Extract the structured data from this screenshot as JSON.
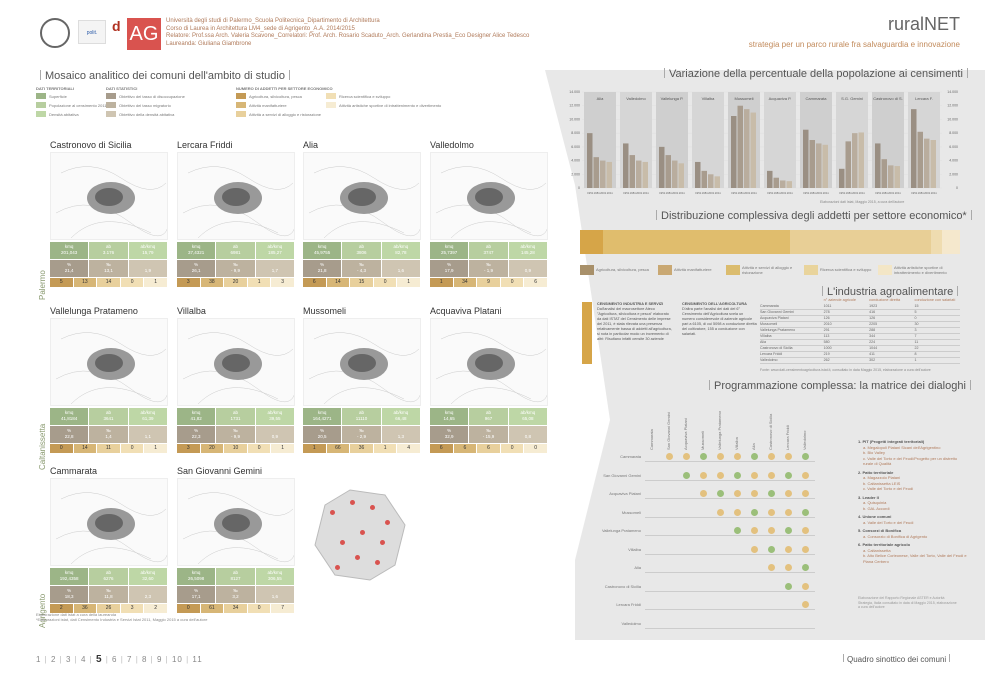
{
  "header": {
    "uni_lines": [
      "Università degli studi di Palermo_Scuola Politecnica_Dipartimento di Architettura",
      "Corso di Laurea in Architettura LM4_sede di Agrigento_A.A. 2014/2015",
      "Relatore: Prof.ssa Arch. Valeria Scavone_Correlatori: Prof. Arch. Rosario Scaduto_Arch. Gerlandina Prestia_Eco Designer Alice Tedesco",
      "Laureanda: Giuliana Giambrone"
    ],
    "title": "ruralNET",
    "subtitle": "strategia per un parco rurale fra salvaguardia e innovazione",
    "logo_ag": "AG"
  },
  "left": {
    "title": "Mosaico analitico dei comuni dell'ambito di studio",
    "legend_heads": [
      "DATI TERRITORIALI",
      "DATI STATISTICI",
      "NUMERO DI ADDETTI PER SETTORE ECONOMICO"
    ],
    "legend_items": [
      "Superficie",
      "Popolazione al censimento 2011",
      "Densità abitativa",
      "Obiettivo del tasso di disoccupazione",
      "Obiettivo del tasso migratorio",
      "Obiettivo della densità abitativa",
      "Agricoltura, silvicoltura, pesca",
      "Attività manifatturiere",
      "Attività a servizi di alloggio e ristorazione",
      "Ricerca scientifica e sviluppo",
      "Attività artistiche sportive di intrattenimento e divertimento"
    ],
    "provinces": [
      "Palermo",
      "Caltanissetta",
      "Agrigento"
    ],
    "towns": [
      {
        "name": "Castronovo di Sicilia",
        "kmq": "201,043",
        "ab": "3.176",
        "den": "15,79",
        "v1": "21,4",
        "v2": "13,1",
        "v3": "1,9",
        "c": [
          "5",
          "13",
          "14",
          "0",
          "1"
        ]
      },
      {
        "name": "Lercara Friddi",
        "kmq": "37,4321",
        "ab": "6981",
        "den": "185,27",
        "v1": "26,1",
        "v2": "- 9,9",
        "v3": "1,7",
        "c": [
          "3",
          "38",
          "20",
          "1",
          "3"
        ]
      },
      {
        "name": "Alia",
        "kmq": "45,9755",
        "ab": "3806",
        "den": "82,78",
        "v1": "21,8",
        "v2": "- 4,3",
        "v3": "1,6",
        "c": [
          "6",
          "14",
          "15",
          "0",
          "1"
        ]
      },
      {
        "name": "Valledolmo",
        "kmq": "25,7397",
        "ab": "3747",
        "den": "145,28",
        "v1": "17,9",
        "v2": "- 1,9",
        "v3": "0,9",
        "c": [
          "1",
          "34",
          "9",
          "0",
          "6"
        ]
      },
      {
        "name": "Vallelunga Pratameno",
        "kmq": "41,8184",
        "ab": "3641",
        "den": "61,39",
        "v1": "22,8",
        "v2": "1,4",
        "v3": "1,1",
        "c": [
          "0",
          "14",
          "11",
          "0",
          "1"
        ]
      },
      {
        "name": "Villalba",
        "kmq": "41,82",
        "ab": "1731",
        "den": "39,55",
        "v1": "22,3",
        "v2": "- 9,9",
        "v3": "0,9",
        "c": [
          "3",
          "20",
          "10",
          "0",
          "1"
        ]
      },
      {
        "name": "Mussomeli",
        "kmq": "164,4271",
        "ab": "11110",
        "den": "66,48",
        "v1": "20,5",
        "v2": "- 2,9",
        "v3": "1,3",
        "c": [
          "1",
          "66",
          "36",
          "1",
          "4"
        ]
      },
      {
        "name": "Acquaviva Platani",
        "kmq": "14,65",
        "ab": "967",
        "den": "65,08",
        "v1": "32,9",
        "v2": "- 15,9",
        "v3": "0,8",
        "c": [
          "6",
          "6",
          "6",
          "0",
          "0"
        ]
      },
      {
        "name": "Cammarata",
        "kmq": "192,4358",
        "ab": "6276",
        "den": "32,60",
        "v1": "18,3",
        "v2": "11,8",
        "v3": "2,3",
        "c": [
          "2",
          "36",
          "26",
          "3",
          "2"
        ]
      },
      {
        "name": "San Giovanni Gemini",
        "kmq": "26,5098",
        "ab": "8127",
        "den": "306,55",
        "v1": "17,1",
        "v2": "3,2",
        "v3": "1,6",
        "c": [
          "0",
          "61",
          "34",
          "0",
          "7"
        ]
      }
    ],
    "stat_heads": [
      "kmq",
      "ab",
      "ab/kmq",
      "%",
      "‰",
      ""
    ],
    "footnote": [
      "Elaborazione dati istat a cura della laureanda",
      "*Elaborazioni istat, dati Censimento Industria e Servizi Istat 2011, Maggio 2015 a cura dell'autore"
    ]
  },
  "pop": {
    "title": "Variazione della percentuale della popolazione ai censimenti",
    "towns": [
      "Alia",
      "Valledolmo",
      "Vallelunga P.",
      "Villalba",
      "Mussomeli",
      "Acquaviva P.",
      "Cammarata",
      "S.G. Gemini",
      "Castronovo di S.",
      "Lercara F."
    ],
    "years": [
      "1951",
      "1981",
      "2001",
      "2011"
    ],
    "ticks": [
      "14.000",
      "12.000",
      "10.000",
      "8.000",
      "6.000",
      "4.000",
      "2.000",
      "0"
    ],
    "source": "Elaborazioni dati Istat, Maggio 2015, a cura dell'autore"
  },
  "dist": {
    "title": "Distribuzione complessiva degli addetti per settore economico*",
    "legend": [
      "Agricoltura, silvicoltura, pesca",
      "Attività manifatturiere",
      "Attività e servizi di alloggio e ristorazione",
      "Ricerca scientifica e sviluppo",
      "Attività artistiche sportive di intrattenimento e divertimento"
    ]
  },
  "agro": {
    "title": "L'industria agroalimentare",
    "col1_head": "CENSIMENTO INDUSTRIA E SERVIZI",
    "col1_text": "Dall'analisi del macrosettore Ateco \"Agricoltura, silvicoltura e pesca\" elaborato da dati ISTAT del Censimento delle imprese del 2011, è stata rilevata una presenza relativamente bassa di addetti all'agricoltura, si nota in particolar modo un incremento di altri: Risultano infatti censite 30 aziende",
    "col2_head": "CENSIMENTO DELL'AGRICOLTURA",
    "col2_text": "D'altra parte l'analisi dei dati del 6° Censimento dell'Agricoltura svela un numero considerevole di aziende agricole pari a 6105, di cui 5098 a conduzione diretta del coltivatore, 155 a conduzione con salariati.",
    "table_head": [
      "n° aziende agricole",
      "conduzione diretta",
      "conduzione con salariati"
    ],
    "table": [
      [
        "Cammarata",
        "1011",
        "1923",
        "15"
      ],
      [
        "San Giovanni Gemini",
        "278",
        "416",
        "5"
      ],
      [
        "Acquaviva Platani",
        "126",
        "126",
        "0"
      ],
      [
        "Mussomeli",
        "2010",
        "2205",
        "30"
      ],
      [
        "Vallelunga Pratameno",
        "291",
        "288",
        "3"
      ],
      [
        "Villalba",
        "113",
        "344",
        "7"
      ],
      [
        "Alia",
        "580",
        "224",
        "11"
      ],
      [
        "Castronovo di Sicilia",
        "1000",
        "1044",
        "22"
      ],
      [
        "Lercara Friddi",
        "219",
        "411",
        "8"
      ],
      [
        "Valledolmo",
        "262",
        "302",
        "1"
      ]
    ],
    "source": "Fonte: www.dati-censimentoagricoltura.istat.it, consultato in data Maggio 2015, elaborazione a cura dell'autore"
  },
  "matrix": {
    "title": "Programmazione complessa: la matrice dei dialoghi",
    "rows": [
      "Cammarata",
      "San Giovanni Gemini",
      "Acquaviva Platani",
      "Mussomeli",
      "Vallelunga Pratameno",
      "Villalba",
      "Alia",
      "Castronovo di Sicilia",
      "Lercara Friddi",
      "Valledolmo"
    ],
    "cols": [
      "Cammarata",
      "San Giovanni Gemini",
      "Acquaviva Platani",
      "Mussomeli",
      "Vallelunga Pratameno",
      "Villalba",
      "Alia",
      "Castronovo di Sicilia",
      "Lercara Friddi",
      "Valledolmo"
    ],
    "legend": [
      {
        "h": "1. PIT (Progetti integrati territoriali)",
        "items": [
          "a. Megalopoli Platani Sicani dell'Agrigentino",
          "b. Bio Valley",
          "c. Valle del Torto e dei Feudi/Progetto per un distretto rurale di Qualità"
        ]
      },
      {
        "h": "2. Patto territoriale",
        "items": [
          "a. Magazzolo Platani",
          "b. Caltanissetta LEIS",
          "c. Valle del Torto e dei Feudi"
        ]
      },
      {
        "h": "3. Leader II",
        "items": [
          "a. Quisquinia",
          "b. GAL Accordi"
        ]
      },
      {
        "h": "4. Unione comuni",
        "items": [
          "a. Valle del Torto e dei Feudi"
        ]
      },
      {
        "h": "5. Consorzi di Bonifica",
        "items": [
          "a. Consorzio di Bonifica di Agrigento"
        ]
      },
      {
        "h": "6. Patto territoriale agricolo",
        "items": [
          "a. Caltanissetta",
          "b. Alto Belice Corleonese, Valle del Torto, Valle del Feudi e Piana Cerbero"
        ]
      }
    ],
    "note": "Elaborazione del Rapporto Regionale ASTER e Autorità Strategia, Italia consultato in data di Maggio 2015, elaborazione a cura dell'autore"
  },
  "footer": {
    "pages": [
      "1",
      "2",
      "3",
      "4",
      "5",
      "6",
      "7",
      "8",
      "9",
      "10",
      "11"
    ],
    "current": "5",
    "label": "Quadro sinottico dei comuni"
  },
  "chart_data": {
    "type": "bar",
    "title": "Variazione della percentuale della popolazione ai censimenti",
    "categories": [
      "Alia",
      "Valledolmo",
      "Vallelunga P.",
      "Villalba",
      "Mussomeli",
      "Acquaviva P.",
      "Cammarata",
      "S.G. Gemini",
      "Castronovo di S.",
      "Lercara F."
    ],
    "series": [
      {
        "name": "1951",
        "values": [
          8000,
          6500,
          6000,
          3800,
          10500,
          2500,
          8500,
          2800,
          6500,
          11500
        ]
      },
      {
        "name": "1981",
        "values": [
          4500,
          4800,
          4800,
          2500,
          12000,
          1500,
          7000,
          6800,
          4200,
          8200
        ]
      },
      {
        "name": "2001",
        "values": [
          4000,
          4000,
          4000,
          2000,
          11500,
          1100,
          6500,
          8000,
          3300,
          7200
        ]
      },
      {
        "name": "2011",
        "values": [
          3800,
          3800,
          3600,
          1700,
          11000,
          1000,
          6300,
          8100,
          3200,
          7000
        ]
      }
    ],
    "ylim": [
      0,
      14000
    ]
  }
}
